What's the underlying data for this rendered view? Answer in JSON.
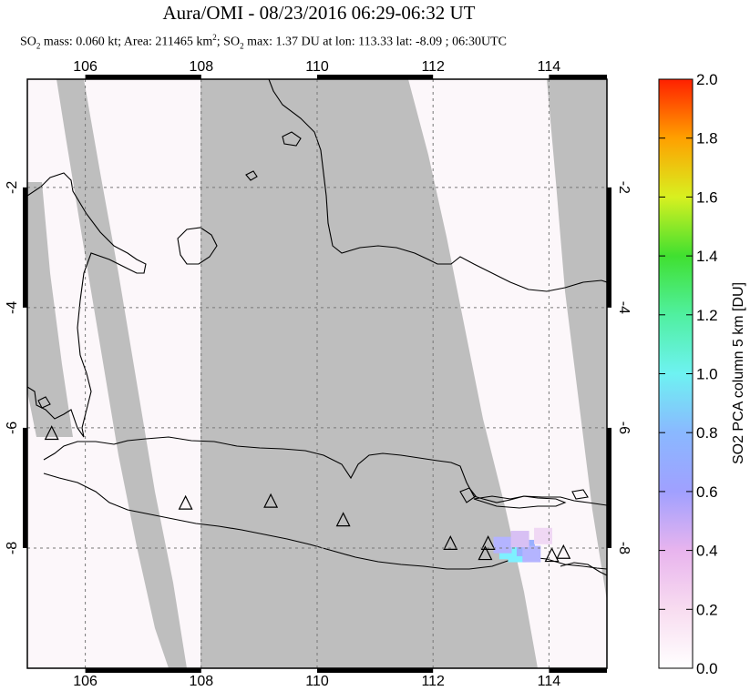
{
  "title": "Aura/OMI - 08/23/2016 06:29-06:32 UT",
  "subtitle": {
    "so2_mass_prefix": "SO",
    "so2_mass_sub": "2",
    "so2_mass_text": " mass: 0.060 kt; Area: 211465 km",
    "area_sup": "2",
    "so2_max_prefix": "; SO",
    "so2_max_sub": "2",
    "so2_max_text": " max: 1.37 DU at lon: 113.33 lat: -8.09 ; 06:30UTC"
  },
  "colorbar": {
    "label": "SO2 PCA column 5 km [DU]",
    "ticks": [
      "0.0",
      "0.2",
      "0.4",
      "0.6",
      "0.8",
      "1.0",
      "1.2",
      "1.4",
      "1.6",
      "1.8",
      "2.0"
    ]
  },
  "colors": {
    "land_nodata": "#bebebe",
    "valid_low": "#fcf7fa",
    "coastline": "#000000",
    "grid": "#777777",
    "so2_peak": "#7ef0ff",
    "so2_mid": "#9ab0ff"
  },
  "chart_data": {
    "type": "heatmap",
    "map_region": "Java, Indonesia",
    "xlim": [
      105,
      115
    ],
    "ylim": [
      -10,
      -0.2
    ],
    "x_ticks": [
      "106",
      "108",
      "110",
      "112",
      "114"
    ],
    "y_ticks": [
      "-2",
      "-4",
      "-6",
      "-8"
    ],
    "x_tick_values": [
      106,
      108,
      110,
      112,
      114
    ],
    "y_tick_values": [
      -2,
      -4,
      -6,
      -8
    ],
    "colorbar_range": [
      0.0,
      2.0
    ],
    "so2_max_du": 1.37,
    "so2_max_lon": 113.33,
    "so2_max_lat": -8.09,
    "volcanoes": [
      {
        "lon": 105.42,
        "lat": -6.1
      },
      {
        "lon": 107.73,
        "lat": -7.26
      },
      {
        "lon": 109.2,
        "lat": -7.23
      },
      {
        "lon": 110.45,
        "lat": -7.54
      },
      {
        "lon": 112.3,
        "lat": -7.93
      },
      {
        "lon": 112.95,
        "lat": -7.93
      },
      {
        "lon": 112.9,
        "lat": -8.1
      },
      {
        "lon": 114.05,
        "lat": -8.13
      },
      {
        "lon": 114.25,
        "lat": -8.08
      }
    ],
    "so2_pixels": [
      {
        "lon": 113.3,
        "lat": -8.05,
        "du": 1.0
      },
      {
        "lon": 113.45,
        "lat": -8.1,
        "du": 0.95
      },
      {
        "lon": 113.6,
        "lat": -8.0,
        "du": 0.6
      },
      {
        "lon": 113.2,
        "lat": -7.95,
        "du": 0.5
      },
      {
        "lon": 113.7,
        "lat": -8.1,
        "du": 0.4
      },
      {
        "lon": 113.5,
        "lat": -7.85,
        "du": 0.3
      },
      {
        "lon": 113.9,
        "lat": -7.8,
        "du": 0.25
      }
    ]
  }
}
